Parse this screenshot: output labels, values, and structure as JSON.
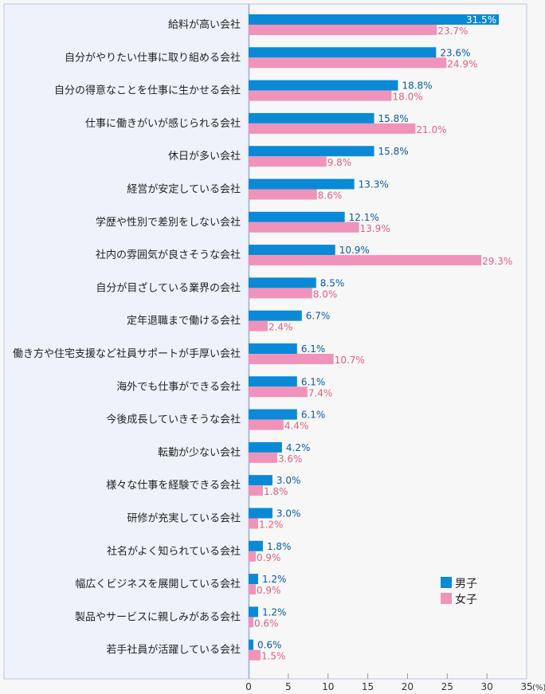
{
  "chart_data": {
    "type": "bar",
    "orientation": "horizontal",
    "title": "",
    "xlabel": "",
    "unit_label": "(%)",
    "xlim": [
      0,
      35
    ],
    "x_ticks": [
      0,
      5,
      10,
      15,
      20,
      25,
      30,
      35
    ],
    "grid": false,
    "legend_position": "bottom-right",
    "categories": [
      "給料が高い会社",
      "自分がやりたい仕事に取り組める会社",
      "自分の得意なことを仕事に生かせる会社",
      "仕事に働きがいが感じられる会社",
      "休日が多い会社",
      "経営が安定している会社",
      "学歴や性別で差別をしない会社",
      "社内の雰囲気が良さそうな会社",
      "自分が目ざしている業界の会社",
      "定年退職まで働ける会社",
      "働き方や住宅支援など社員サポートが手厚い会社",
      "海外でも仕事ができる会社",
      "今後成長していきそうな会社",
      "転勤が少ない会社",
      "様々な仕事を経験できる会社",
      "研修が充実している会社",
      "社名がよく知られている会社",
      "幅広くビジネスを展開している会社",
      "製品やサービスに親しみがある会社",
      "若手社員が活躍している会社"
    ],
    "series": [
      {
        "name": "男子",
        "color": "#0a8ad6",
        "values": [
          31.5,
          23.6,
          18.8,
          15.8,
          15.8,
          13.3,
          12.1,
          10.9,
          8.5,
          6.7,
          6.1,
          6.1,
          6.1,
          4.2,
          3.0,
          3.0,
          1.8,
          1.2,
          1.2,
          0.6
        ]
      },
      {
        "name": "女子",
        "color": "#f093bb",
        "values": [
          23.7,
          24.9,
          18.0,
          21.0,
          9.8,
          8.6,
          13.9,
          29.3,
          8.0,
          2.4,
          10.7,
          7.4,
          4.4,
          3.6,
          1.8,
          1.2,
          0.9,
          0.9,
          0.6,
          1.5
        ]
      }
    ]
  }
}
